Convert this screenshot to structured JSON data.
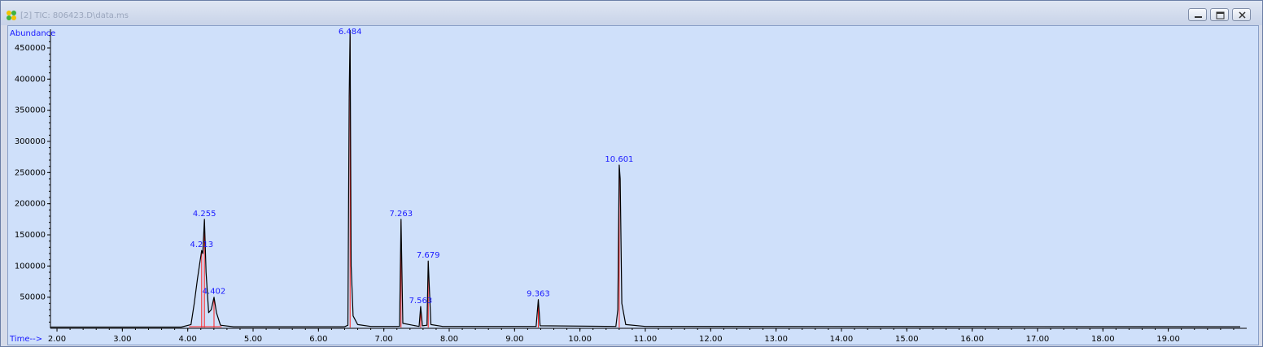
{
  "window": {
    "title": "[2] TIC: 806423.D\\data.ms",
    "minimize_icon": "minimize-icon",
    "maximize_icon": "restore-icon",
    "close_icon": "close-icon"
  },
  "colors": {
    "plot_bg": "#cfe0fa",
    "trace": "#000000",
    "baseline": "#ff0000",
    "labels": "#1a1aff"
  },
  "chart_data": {
    "type": "line",
    "title": "",
    "xlabel": "Time-->",
    "ylabel": "Abundance",
    "xlim": [
      1.9,
      20.2
    ],
    "ylim": [
      0,
      480000
    ],
    "x_ticks": [
      "2.00",
      "3.00",
      "4.00",
      "5.00",
      "6.00",
      "7.00",
      "8.00",
      "9.00",
      "10.00",
      "11.00",
      "12.00",
      "13.00",
      "14.00",
      "15.00",
      "16.00",
      "17.00",
      "18.00",
      "19.00"
    ],
    "y_ticks": [
      "50000",
      "100000",
      "150000",
      "200000",
      "250000",
      "300000",
      "350000",
      "400000",
      "450000"
    ],
    "series": [
      {
        "values": [
          [
            1.9,
            2000
          ],
          [
            3.9,
            2000
          ],
          [
            4.05,
            6000
          ],
          [
            4.1,
            40000
          ],
          [
            4.15,
            80000
          ],
          [
            4.213,
            125000
          ],
          [
            4.23,
            120000
          ],
          [
            4.255,
            175000
          ],
          [
            4.28,
            90000
          ],
          [
            4.32,
            25000
          ],
          [
            4.36,
            30000
          ],
          [
            4.402,
            50000
          ],
          [
            4.44,
            25000
          ],
          [
            4.5,
            5000
          ],
          [
            4.7,
            2500
          ],
          [
            6.4,
            2500
          ],
          [
            6.45,
            5000
          ],
          [
            6.47,
            372000
          ],
          [
            6.484,
            478000
          ],
          [
            6.5,
            100000
          ],
          [
            6.53,
            20000
          ],
          [
            6.6,
            6000
          ],
          [
            6.8,
            3000
          ],
          [
            7.24,
            3000
          ],
          [
            7.263,
            175000
          ],
          [
            7.29,
            8000
          ],
          [
            7.54,
            3000
          ],
          [
            7.563,
            35000
          ],
          [
            7.59,
            4000
          ],
          [
            7.66,
            5000
          ],
          [
            7.679,
            108000
          ],
          [
            7.7,
            55000
          ],
          [
            7.72,
            6000
          ],
          [
            7.9,
            3000
          ],
          [
            9.33,
            3000
          ],
          [
            9.363,
            46000
          ],
          [
            9.39,
            4000
          ],
          [
            10.55,
            3000
          ],
          [
            10.58,
            30000
          ],
          [
            10.601,
            262000
          ],
          [
            10.615,
            240000
          ],
          [
            10.64,
            40000
          ],
          [
            10.7,
            6000
          ],
          [
            11.0,
            3000
          ],
          [
            20.1,
            2500
          ]
        ]
      }
    ],
    "peaks": [
      {
        "x": 4.213,
        "y": 125000,
        "label": "4.213"
      },
      {
        "x": 4.255,
        "y": 175000,
        "label": "4.255"
      },
      {
        "x": 4.402,
        "y": 50000,
        "label": "4.402"
      },
      {
        "x": 6.484,
        "y": 478000,
        "label": "6.484"
      },
      {
        "x": 7.263,
        "y": 175000,
        "label": "7.263"
      },
      {
        "x": 7.563,
        "y": 35000,
        "label": "7.563"
      },
      {
        "x": 7.679,
        "y": 108000,
        "label": "7.679"
      },
      {
        "x": 9.363,
        "y": 46000,
        "label": "9.363"
      },
      {
        "x": 10.601,
        "y": 262000,
        "label": "10.601"
      }
    ],
    "grid": false,
    "legend": "none"
  }
}
